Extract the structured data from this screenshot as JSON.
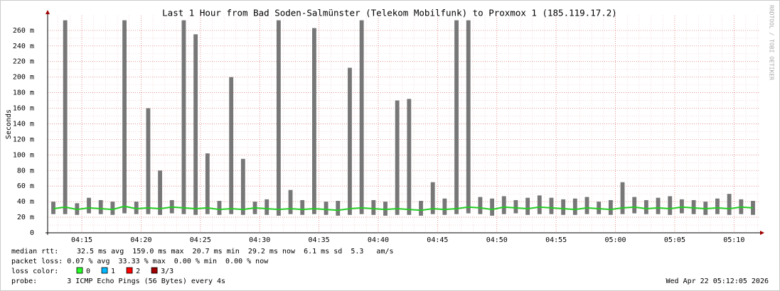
{
  "chart_data": {
    "type": "line",
    "title": "Last 1 Hour from Bad Soden-Salmünster (Telekom Mobilfunk) to Proxmox 1 (185.119.17.2)",
    "y_label": "Seconds",
    "watermark": "RRDTOOL / TOBI OETIKER",
    "grid": true,
    "xlim": [
      252.12,
      312.08
    ],
    "xticks": [
      {
        "value": 255,
        "label": "04:15"
      },
      {
        "value": 260,
        "label": "04:20"
      },
      {
        "value": 265,
        "label": "04:25"
      },
      {
        "value": 270,
        "label": "04:30"
      },
      {
        "value": 275,
        "label": "04:35"
      },
      {
        "value": 280,
        "label": "04:40"
      },
      {
        "value": 285,
        "label": "04:45"
      },
      {
        "value": 290,
        "label": "04:50"
      },
      {
        "value": 295,
        "label": "04:55"
      },
      {
        "value": 300,
        "label": "05:00"
      },
      {
        "value": 305,
        "label": "05:05"
      },
      {
        "value": 310,
        "label": "05:10"
      }
    ],
    "ylim": [
      0,
      0.279
    ],
    "yticks": [
      0,
      {
        "value": 0.02,
        "label": "20 m"
      },
      {
        "value": 0.04,
        "label": "40 m"
      },
      {
        "value": 0.06,
        "label": "60 m"
      },
      {
        "value": 0.08,
        "label": "80 m"
      },
      {
        "value": 0.1,
        "label": "100 m"
      },
      {
        "value": 0.12,
        "label": "120 m"
      },
      {
        "value": 0.14,
        "label": "140 m"
      },
      {
        "value": 0.16,
        "label": "160 m"
      },
      {
        "value": 0.18,
        "label": "180 m"
      },
      {
        "value": 0.2,
        "label": "200 m"
      },
      {
        "value": 0.22,
        "label": "220 m"
      },
      {
        "value": 0.24,
        "label": "240 m"
      },
      {
        "value": 0.26,
        "label": "260 m"
      }
    ],
    "x": [
      252.6,
      253.6,
      254.6,
      255.6,
      256.6,
      257.6,
      258.6,
      259.6,
      260.6,
      261.6,
      262.6,
      263.6,
      264.6,
      265.6,
      266.6,
      267.6,
      268.6,
      269.6,
      270.6,
      271.6,
      272.6,
      273.6,
      274.6,
      275.6,
      276.6,
      277.6,
      278.6,
      279.6,
      280.6,
      281.6,
      282.6,
      283.6,
      284.6,
      285.6,
      286.6,
      287.6,
      288.6,
      289.6,
      290.6,
      291.6,
      292.6,
      293.6,
      294.6,
      295.6,
      296.6,
      297.6,
      298.6,
      299.6,
      300.6,
      301.6,
      302.6,
      303.6,
      304.6,
      305.6,
      306.6,
      307.6,
      308.6,
      309.6,
      310.6,
      311.6
    ],
    "series": [
      {
        "name": "median rtt:",
        "color": "#22cc22",
        "values": [
          0.031,
          0.033,
          0.03,
          0.032,
          0.031,
          0.03,
          0.034,
          0.031,
          0.032,
          0.031,
          0.033,
          0.032,
          0.031,
          0.032,
          0.03,
          0.031,
          0.03,
          0.032,
          0.031,
          0.03,
          0.031,
          0.03,
          0.031,
          0.03,
          0.029,
          0.031,
          0.032,
          0.031,
          0.03,
          0.031,
          0.03,
          0.029,
          0.031,
          0.03,
          0.031,
          0.033,
          0.032,
          0.03,
          0.033,
          0.032,
          0.031,
          0.033,
          0.032,
          0.031,
          0.03,
          0.032,
          0.031,
          0.03,
          0.032,
          0.033,
          0.031,
          0.032,
          0.031,
          0.033,
          0.032,
          0.031,
          0.032,
          0.031,
          0.033,
          0.032
        ]
      }
    ],
    "smoke": {
      "color": "#777777",
      "min": [
        0.024,
        0.024,
        0.023,
        0.025,
        0.024,
        0.023,
        0.025,
        0.024,
        0.024,
        0.023,
        0.025,
        0.024,
        0.023,
        0.024,
        0.023,
        0.024,
        0.023,
        0.024,
        0.023,
        0.022,
        0.024,
        0.023,
        0.024,
        0.023,
        0.022,
        0.023,
        0.024,
        0.023,
        0.022,
        0.023,
        0.023,
        0.022,
        0.024,
        0.023,
        0.024,
        0.025,
        0.024,
        0.022,
        0.024,
        0.025,
        0.023,
        0.024,
        0.024,
        0.023,
        0.023,
        0.024,
        0.024,
        0.023,
        0.024,
        0.025,
        0.024,
        0.024,
        0.023,
        0.025,
        0.024,
        0.023,
        0.024,
        0.023,
        0.024,
        0.023
      ],
      "max": [
        0.04,
        0.273,
        0.038,
        0.045,
        0.042,
        0.04,
        0.273,
        0.04,
        0.16,
        0.08,
        0.042,
        0.273,
        0.255,
        0.102,
        0.041,
        0.2,
        0.095,
        0.04,
        0.043,
        0.273,
        0.055,
        0.042,
        0.263,
        0.04,
        0.041,
        0.212,
        0.273,
        0.042,
        0.04,
        0.17,
        0.172,
        0.041,
        0.065,
        0.044,
        0.273,
        0.273,
        0.046,
        0.044,
        0.047,
        0.042,
        0.045,
        0.048,
        0.045,
        0.043,
        0.044,
        0.046,
        0.04,
        0.042,
        0.065,
        0.046,
        0.042,
        0.045,
        0.047,
        0.043,
        0.042,
        0.04,
        0.044,
        0.05,
        0.043,
        0.041
      ]
    },
    "stats_rtt": "32.5 ms avg  159.0 ms max  20.7 ms min  29.2 ms now  6.1 ms sd  5.3   am/s",
    "packet_loss": "packet loss: 0.07 % avg  33.33 % max  0.00 % min  0.00 % now",
    "loss_legend": {
      "label": "loss color:",
      "items": [
        {
          "name": "0",
          "color": "#26ff26"
        },
        {
          "name": "1",
          "color": "#00b8ff"
        },
        {
          "name": "2",
          "color": "#ff0000"
        },
        {
          "name": "3/3",
          "color": "#a00000"
        }
      ]
    },
    "probe": "probe:       3 ICMP Echo Pings (56 Bytes) every 4s",
    "timestamp": "Wed Apr 22 05:12:05 2026"
  }
}
